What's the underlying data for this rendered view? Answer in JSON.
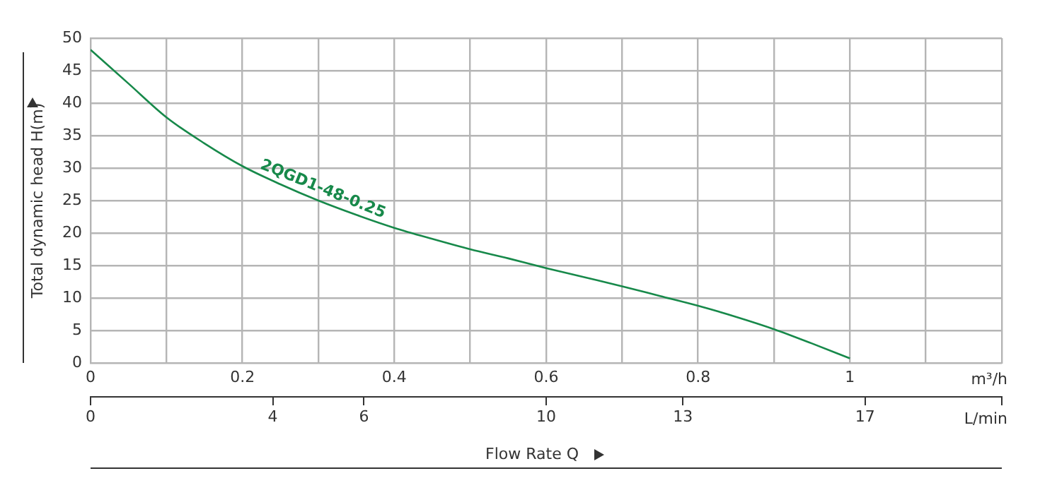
{
  "chart_data": {
    "type": "line",
    "ylabel": "Total dynamic head H(m)",
    "xlabel": "m³/h",
    "x2label": "L/min",
    "annotations": [
      "Flow Rate Q"
    ],
    "xlim": [
      0,
      1.2
    ],
    "xticks": [
      0,
      {
        "value": 0.1,
        "label": null
      },
      0.2,
      {
        "value": 0.3,
        "label": null
      },
      0.4,
      {
        "value": 0.5,
        "label": null
      },
      0.6,
      {
        "value": 0.7,
        "label": null
      },
      0.8,
      {
        "value": 0.9,
        "label": null
      },
      1,
      {
        "value": 1.1,
        "label": null
      },
      {
        "value": 1.2,
        "label": null
      }
    ],
    "x2lim": [
      0,
      20
    ],
    "x2ticks": [
      0,
      4,
      6,
      10,
      13,
      17,
      {
        "value": 20,
        "label": null
      }
    ],
    "ylim": [
      0,
      50
    ],
    "yticks": [
      0,
      5,
      10,
      15,
      20,
      25,
      30,
      35,
      40,
      45,
      50
    ],
    "grid": true,
    "marker": "none",
    "line_style": "solid",
    "series": [
      {
        "name": "2QGD1-48-0.25",
        "color": "#17894a",
        "x": [
          0,
          0.05,
          0.1,
          0.15,
          0.2,
          0.25,
          0.3,
          0.35,
          0.4,
          0.45,
          0.5,
          0.55,
          0.6,
          0.65,
          0.7,
          0.75,
          0.8,
          0.85,
          0.9,
          0.95,
          1
        ],
        "values": [
          48.2,
          43,
          37.8,
          33.8,
          30.3,
          27.5,
          25,
          22.8,
          20.8,
          19.1,
          17.5,
          16.1,
          14.6,
          13.2,
          11.8,
          10.3,
          8.8,
          7.1,
          5.2,
          3,
          0.7
        ]
      }
    ]
  }
}
